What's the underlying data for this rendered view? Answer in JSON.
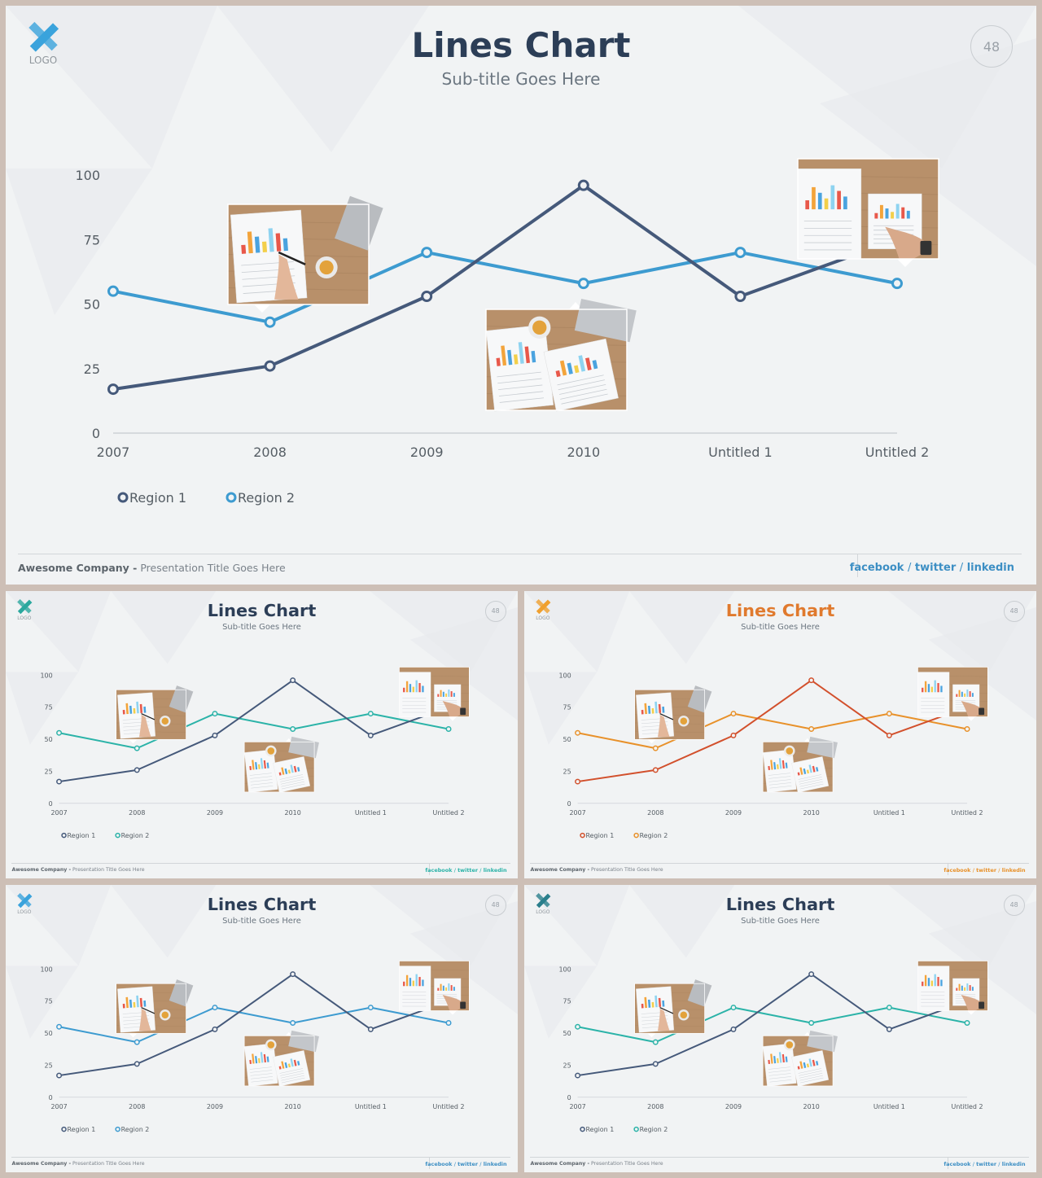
{
  "slides": [
    {
      "title": "Lines Chart",
      "subtitle": "Sub-title Goes Here",
      "page_number": "48",
      "logo_text": "LOGO",
      "footer": {
        "company": "Awesome Company -",
        "presentation": "Presentation Title Goes Here",
        "social": [
          "facebook",
          "twitter",
          "linkedin"
        ],
        "separator": "/"
      },
      "colors": {
        "series1": "#45597a",
        "series2": "#3d9bd0",
        "title": "#2c3e57",
        "social": "#3d8fc4",
        "logo": "#3aa3dc"
      }
    },
    {
      "title": "Lines Chart",
      "subtitle": "Sub-title Goes Here",
      "page_number": "48",
      "logo_text": "LOGO",
      "footer": {
        "company": "Awesome Company -",
        "presentation": "Presentation Title Goes Here",
        "social": [
          "facebook",
          "twitter",
          "linkedin"
        ],
        "separator": "/"
      },
      "colors": {
        "series1": "#45597a",
        "series2": "#2bb3a8",
        "title": "#2c3e57",
        "social": "#2bb3a8",
        "logo": "#2aa89e"
      }
    },
    {
      "title": "Lines Chart",
      "subtitle": "Sub-title Goes Here",
      "page_number": "48",
      "logo_text": "LOGO",
      "footer": {
        "company": "Awesome Company -",
        "presentation": "Presentation Title Goes Here",
        "social": [
          "facebook",
          "twitter",
          "linkedin"
        ],
        "separator": "/"
      },
      "colors": {
        "series1": "#d2502c",
        "series2": "#e8912a",
        "title": "#e07a2e",
        "social": "#e8912a",
        "logo": "#f0a02e"
      }
    },
    {
      "title": "Lines Chart",
      "subtitle": "Sub-title Goes Here",
      "page_number": "48",
      "logo_text": "LOGO",
      "footer": {
        "company": "Awesome Company -",
        "presentation": "Presentation Title Goes Here",
        "social": [
          "facebook",
          "twitter",
          "linkedin"
        ],
        "separator": "/"
      },
      "colors": {
        "series1": "#45597a",
        "series2": "#3d9bd0",
        "title": "#2c3e57",
        "social": "#3d8fc4",
        "logo": "#3aa3dc"
      }
    },
    {
      "title": "Lines Chart",
      "subtitle": "Sub-title Goes Here",
      "page_number": "48",
      "logo_text": "LOGO",
      "footer": {
        "company": "Awesome Company -",
        "presentation": "Presentation Title Goes Here",
        "social": [
          "facebook",
          "twitter",
          "linkedin"
        ],
        "separator": "/"
      },
      "colors": {
        "series1": "#45597a",
        "series2": "#2bb3a8",
        "title": "#2c3e57",
        "social": "#3d8fc4",
        "logo": "#2a7f8c"
      }
    }
  ],
  "chart_data": [
    {
      "type": "line",
      "categories": [
        "2007",
        "2008",
        "2009",
        "2010",
        "Untitled 1",
        "Untitled 2"
      ],
      "series": [
        {
          "name": "Region 1",
          "values": [
            17,
            26,
            53,
            96,
            53,
            75
          ]
        },
        {
          "name": "Region 2",
          "values": [
            55,
            43,
            70,
            58,
            70,
            58
          ]
        }
      ],
      "yticks": [
        0,
        25,
        50,
        75,
        100
      ],
      "ylim": [
        0,
        100
      ],
      "legend": "bottom-left"
    }
  ]
}
